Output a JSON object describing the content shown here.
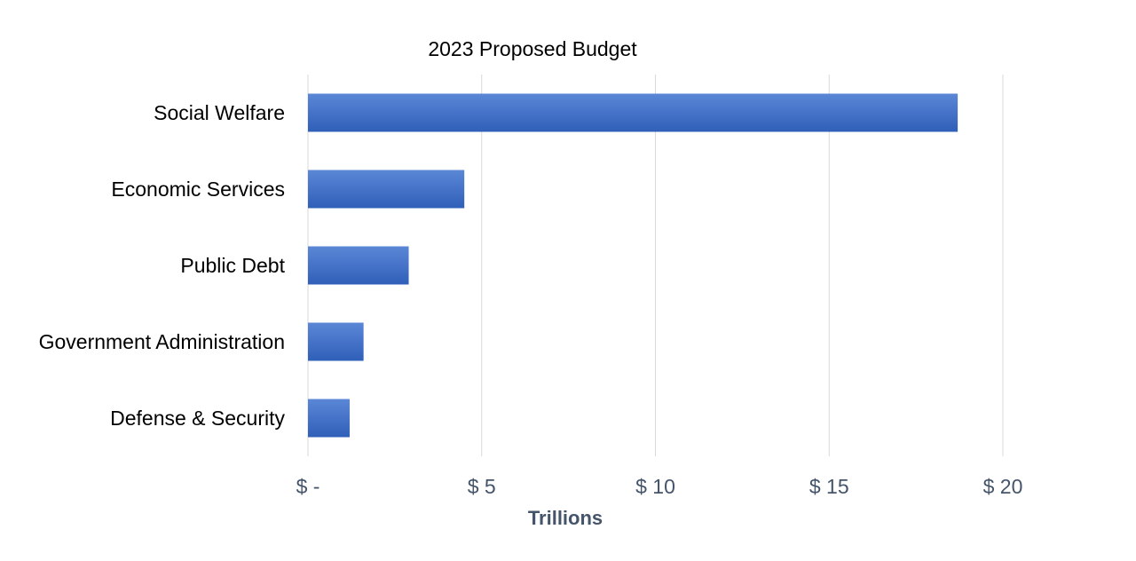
{
  "chart_data": {
    "type": "bar",
    "orientation": "horizontal",
    "title": "2023 Proposed Budget",
    "xlabel": "Trillions",
    "ylabel": "",
    "categories": [
      "Social Welfare",
      "Economic Services",
      "Public Debt",
      "Government Administration",
      "Defense & Security"
    ],
    "values": [
      18.7,
      4.5,
      2.9,
      1.6,
      1.2
    ],
    "xlim": [
      0,
      20
    ],
    "x_ticks": [
      0,
      5,
      10,
      15,
      20
    ],
    "x_tick_labels": [
      "$ -",
      "$ 5",
      "$ 10",
      "$ 15",
      "$ 20"
    ],
    "grid": "vertical",
    "legend": "none",
    "bar_color": "#4472c4"
  }
}
